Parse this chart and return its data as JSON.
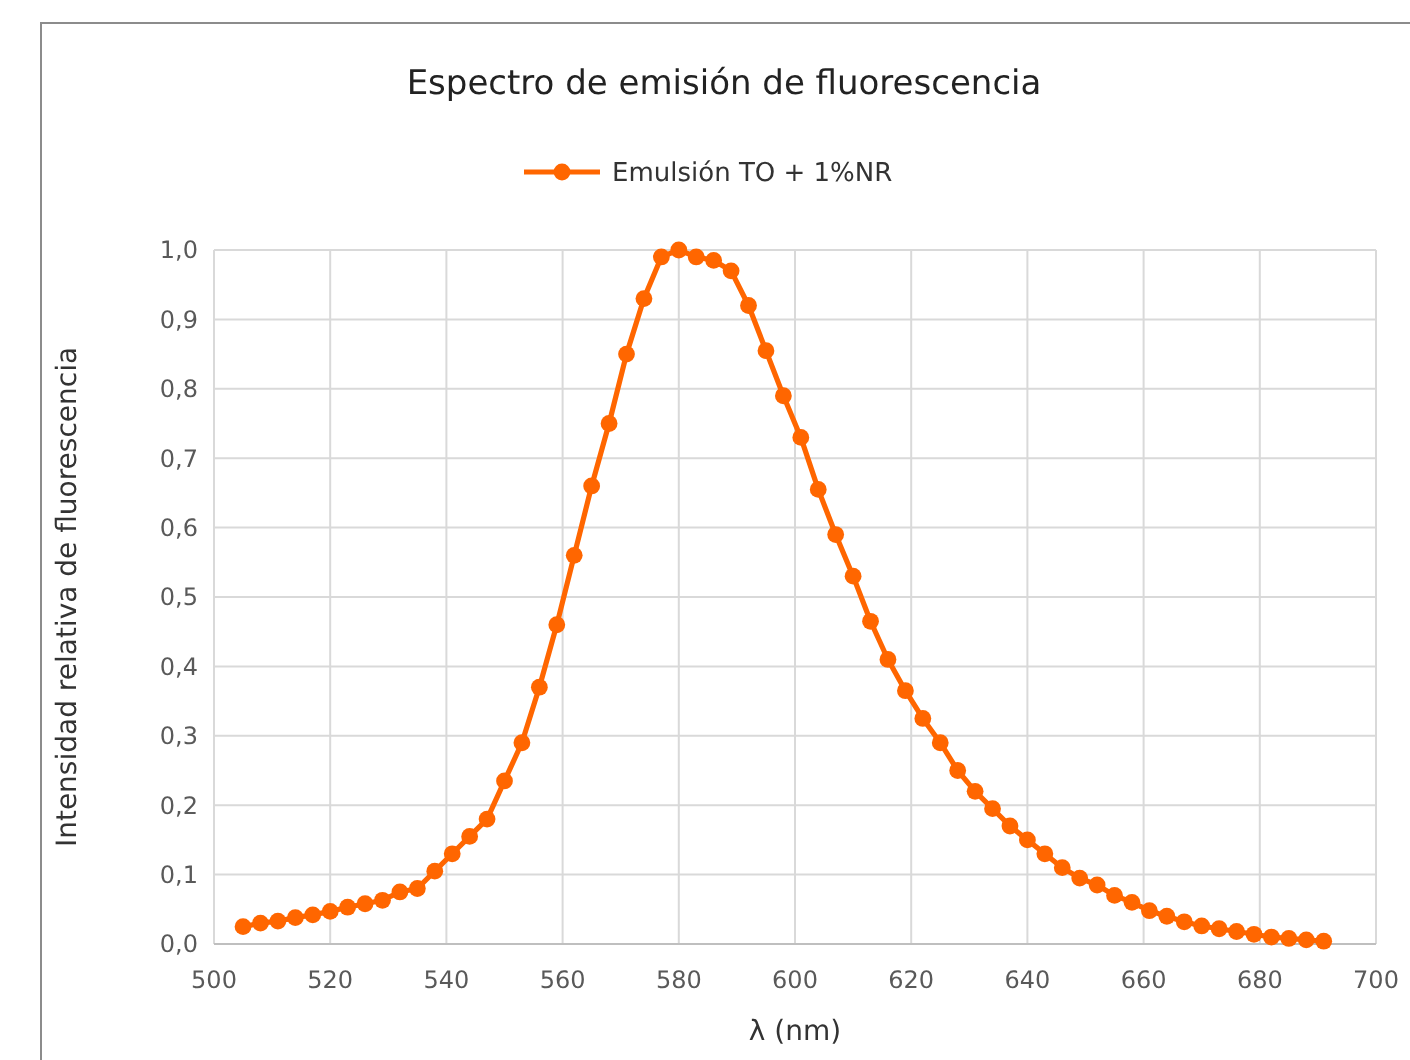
{
  "chart_data": {
    "type": "line",
    "title": "Espectro de emisión de fluorescencia",
    "xlabel": "λ (nm)",
    "ylabel": "Intensidad relativa de fluorescencia",
    "x": [
      505,
      508,
      511,
      514,
      517,
      520,
      523,
      526,
      529,
      532,
      535,
      538,
      541,
      544,
      547,
      550,
      553,
      556,
      559,
      562,
      565,
      568,
      571,
      574,
      577,
      580,
      583,
      586,
      589,
      592,
      595,
      598,
      601,
      604,
      607,
      610,
      613,
      616,
      619,
      622,
      625,
      628,
      631,
      634,
      637,
      640,
      643,
      646,
      649,
      652,
      655,
      658,
      661,
      664,
      667,
      670,
      673,
      676,
      679,
      682,
      685,
      688,
      691
    ],
    "series": [
      {
        "name": "Emulsión TO + 1%NR",
        "color": "#ff6600",
        "values": [
          0.025,
          0.03,
          0.033,
          0.038,
          0.042,
          0.047,
          0.053,
          0.058,
          0.063,
          0.075,
          0.08,
          0.105,
          0.13,
          0.155,
          0.18,
          0.235,
          0.29,
          0.37,
          0.46,
          0.56,
          0.66,
          0.75,
          0.85,
          0.93,
          0.99,
          1.0,
          0.99,
          0.985,
          0.97,
          0.92,
          0.855,
          0.79,
          0.73,
          0.655,
          0.59,
          0.53,
          0.465,
          0.41,
          0.365,
          0.325,
          0.29,
          0.25,
          0.22,
          0.195,
          0.17,
          0.15,
          0.13,
          0.11,
          0.095,
          0.085,
          0.07,
          0.06,
          0.048,
          0.04,
          0.032,
          0.026,
          0.022,
          0.018,
          0.014,
          0.01,
          0.008,
          0.006,
          0.004
        ]
      }
    ],
    "xlim": [
      500,
      700
    ],
    "xticks": [
      500,
      520,
      540,
      560,
      580,
      600,
      620,
      640,
      660,
      680,
      700
    ],
    "ylim": [
      0,
      1
    ],
    "yticks": [
      {
        "value": 0,
        "label": "0,0"
      },
      {
        "value": 0.1,
        "label": "0,1"
      },
      {
        "value": 0.2,
        "label": "0,2"
      },
      {
        "value": 0.3,
        "label": "0,3"
      },
      {
        "value": 0.4,
        "label": "0,4"
      },
      {
        "value": 0.5,
        "label": "0,5"
      },
      {
        "value": 0.6,
        "label": "0,6"
      },
      {
        "value": 0.7,
        "label": "0,7"
      },
      {
        "value": 0.8,
        "label": "0,8"
      },
      {
        "value": 0.9,
        "label": "0,9"
      },
      {
        "value": 1,
        "label": "1,0"
      }
    ],
    "grid": true,
    "legend": "top",
    "marker": "circle",
    "line_style": "solid"
  }
}
